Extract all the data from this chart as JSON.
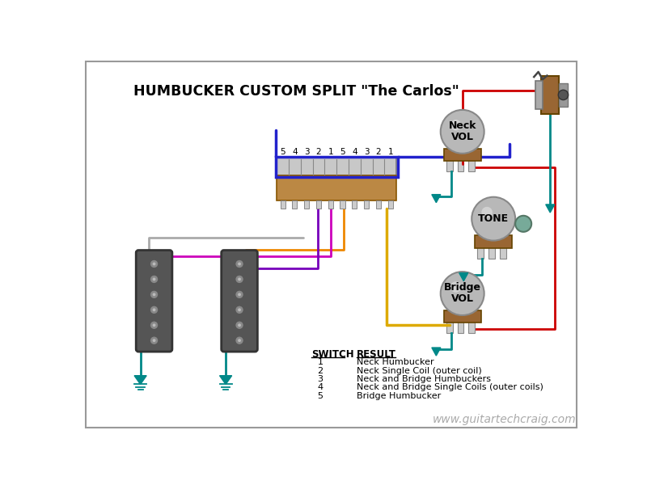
{
  "title": "HUMBUCKER CUSTOM SPLIT \"The Carlos\"",
  "watermark": "www.guitartechcraig.com",
  "bg_color": "#ffffff",
  "border_color": "#999999",
  "switch_labels": [
    "5",
    "4",
    "3",
    "2",
    "1",
    "5",
    "4",
    "3",
    "2",
    "1"
  ],
  "results": [
    [
      "1",
      "Neck Humbucker"
    ],
    [
      "2",
      "Neck Single Coil (outer coil)"
    ],
    [
      "3",
      "Neck and Bridge Humbuckers"
    ],
    [
      "4",
      "Neck and Bridge Single Coils (outer coils)"
    ],
    [
      "5",
      "Bridge Humbucker"
    ]
  ],
  "col_red": "#cc0000",
  "col_blue": "#2222cc",
  "col_teal": "#008888",
  "col_yellow": "#ddaa00",
  "col_orange": "#ee8800",
  "col_magenta": "#cc00bb",
  "col_purple": "#7700bb",
  "col_white_wire": "#aaaaaa",
  "col_brown": "#996633",
  "col_gray_pot": "#b8b8b8",
  "col_gray_dark": "#555555",
  "col_switch_silver": "#c8c8c8",
  "col_switch_brown": "#bb8844"
}
